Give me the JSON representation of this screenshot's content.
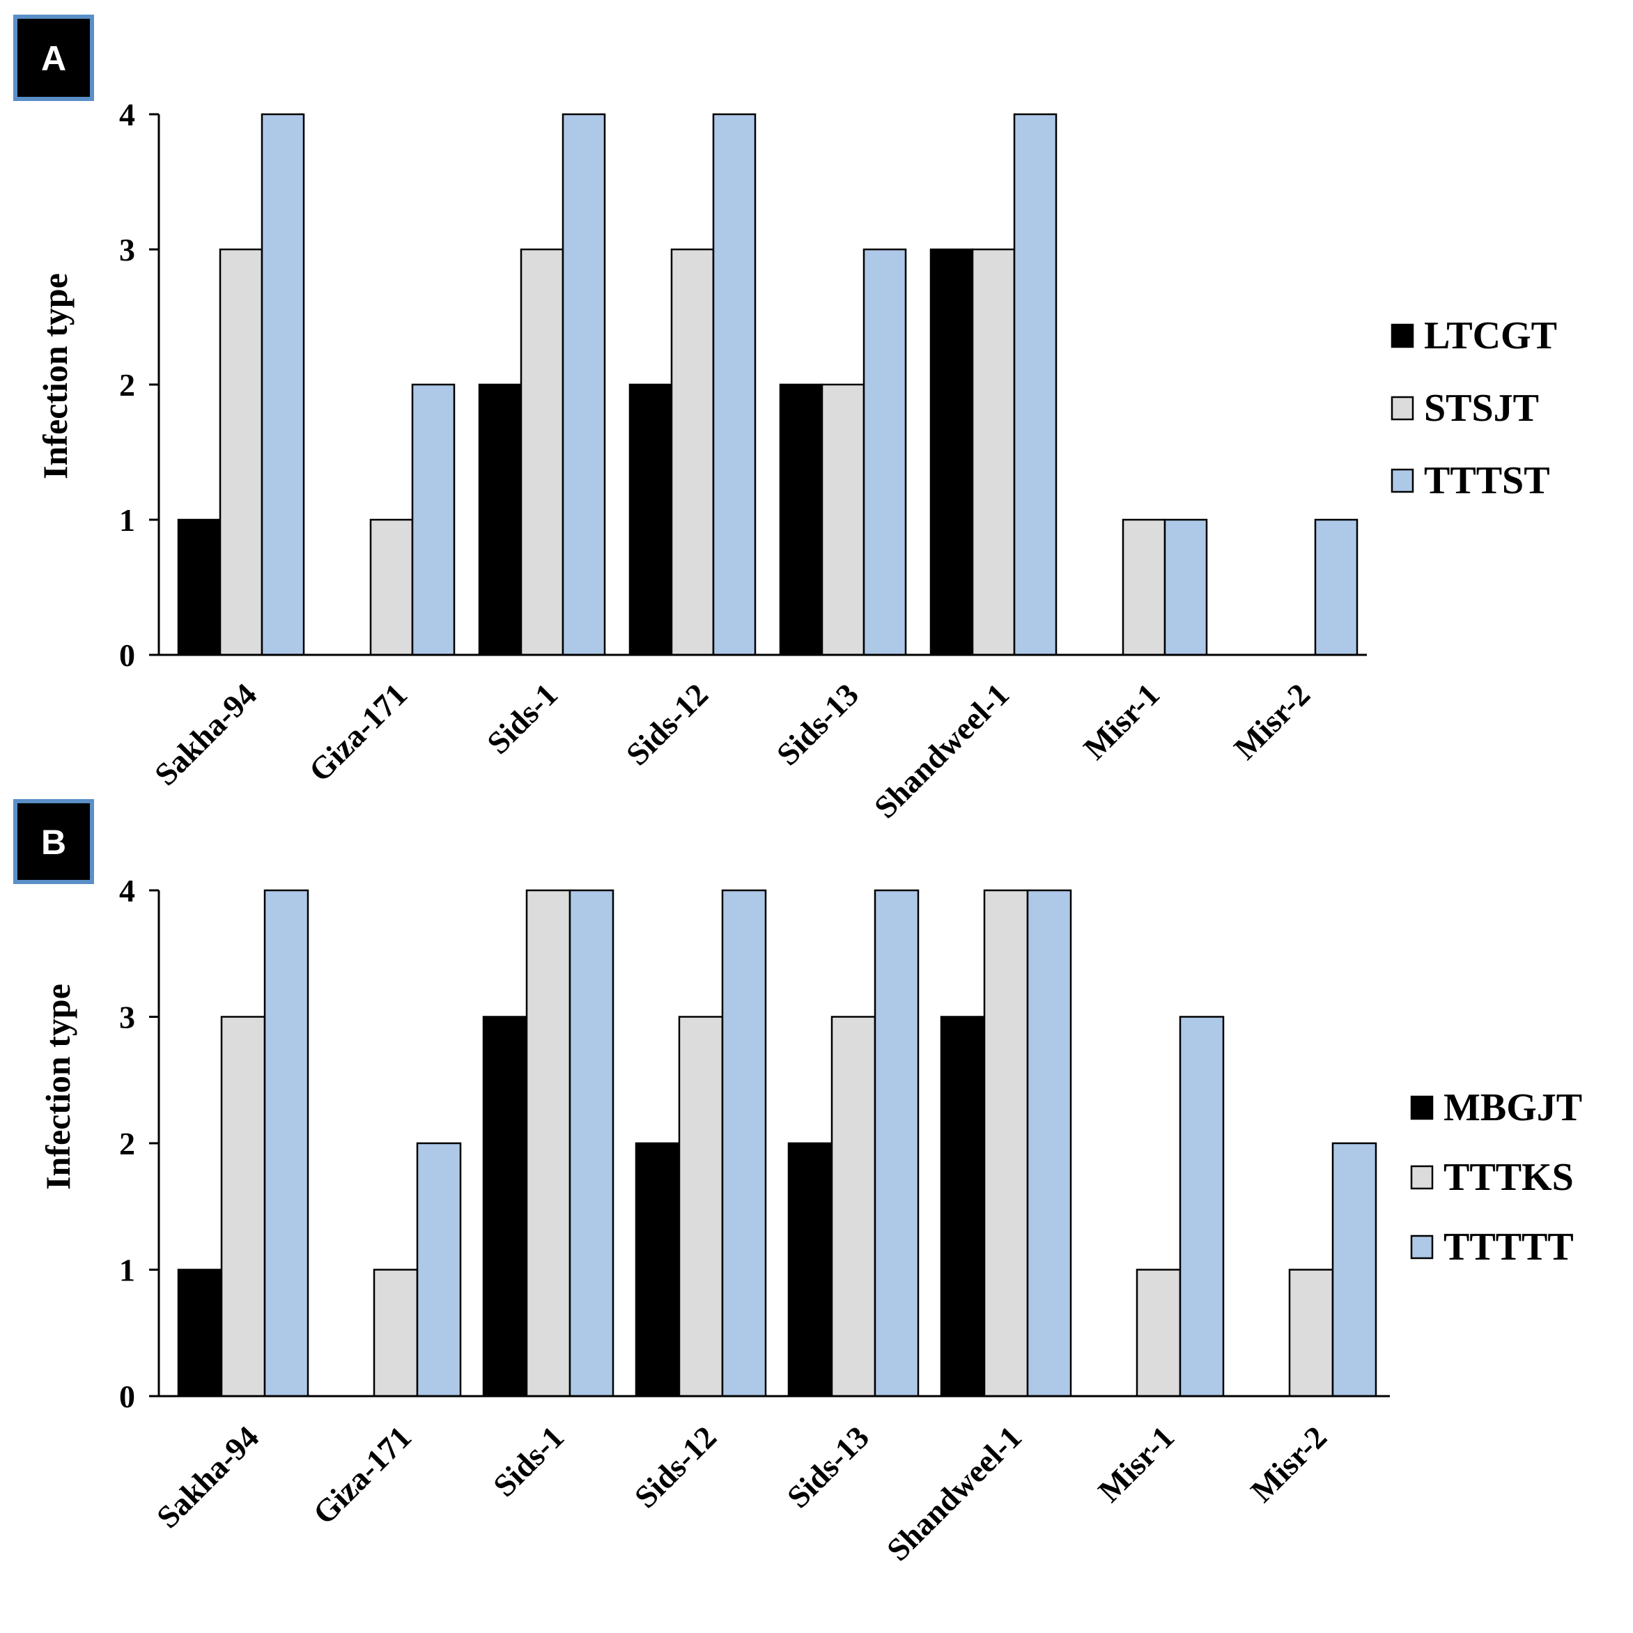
{
  "chart_data": [
    {
      "type": "bar",
      "panel_label": "A",
      "ylabel": "Infection type",
      "ylim": [
        0,
        4
      ],
      "yticks": [
        "0",
        "1",
        "2",
        "3",
        "4"
      ],
      "categories": [
        "Sakha-94",
        "Giza-171",
        "Sids-1",
        "Sids-12",
        "Sids-13",
        "Shandweel-1",
        "Misr-1",
        "Misr-2"
      ],
      "series": [
        {
          "name": "LTCGT",
          "color": "#000000",
          "values": [
            1,
            0,
            2,
            2,
            2,
            3,
            0,
            0
          ]
        },
        {
          "name": "STSJT",
          "color": "#dcdcdc",
          "values": [
            3,
            1,
            3,
            3,
            2,
            3,
            1,
            0
          ]
        },
        {
          "name": "TTTST",
          "color": "#aec8e8",
          "values": [
            4,
            2,
            4,
            4,
            3,
            4,
            1,
            1
          ]
        }
      ],
      "legend": "right"
    },
    {
      "type": "bar",
      "panel_label": "B",
      "ylabel": "Infection type",
      "ylim": [
        0,
        4
      ],
      "yticks": [
        "0",
        "1",
        "2",
        "3",
        "4"
      ],
      "categories": [
        "Sakha-94",
        "Giza-171",
        "Sids-1",
        "Sids-12",
        "Sids-13",
        "Shandweel-1",
        "Misr-1",
        "Misr-2"
      ],
      "series": [
        {
          "name": "MBGJT",
          "color": "#000000",
          "values": [
            1,
            0,
            3,
            2,
            2,
            3,
            0,
            0
          ]
        },
        {
          "name": "TTTKS",
          "color": "#dcdcdc",
          "values": [
            3,
            1,
            4,
            3,
            3,
            4,
            1,
            1
          ]
        },
        {
          "name": "TTTTT",
          "color": "#aec8e8",
          "values": [
            4,
            2,
            4,
            4,
            4,
            4,
            3,
            2
          ]
        }
      ],
      "legend": "right"
    }
  ]
}
